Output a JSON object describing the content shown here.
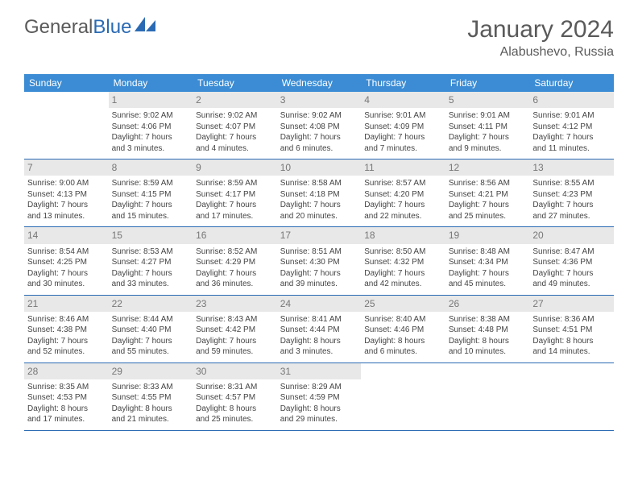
{
  "logo": {
    "text_a": "General",
    "text_b": "Blue"
  },
  "title": "January 2024",
  "location": "Alabushevo, Russia",
  "colors": {
    "header_bg": "#3b8cd4",
    "border": "#2a6ab3",
    "daynum_bg": "#e8e8e8",
    "text": "#444444",
    "muted": "#777777",
    "page_bg": "#ffffff"
  },
  "fonts": {
    "title_pt": 30,
    "location_pt": 16,
    "th_pt": 12,
    "cell_pt": 10
  },
  "days_of_week": [
    "Sunday",
    "Monday",
    "Tuesday",
    "Wednesday",
    "Thursday",
    "Friday",
    "Saturday"
  ],
  "weeks": [
    [
      null,
      {
        "n": "1",
        "sr": "Sunrise: 9:02 AM",
        "ss": "Sunset: 4:06 PM",
        "d1": "Daylight: 7 hours",
        "d2": "and 3 minutes."
      },
      {
        "n": "2",
        "sr": "Sunrise: 9:02 AM",
        "ss": "Sunset: 4:07 PM",
        "d1": "Daylight: 7 hours",
        "d2": "and 4 minutes."
      },
      {
        "n": "3",
        "sr": "Sunrise: 9:02 AM",
        "ss": "Sunset: 4:08 PM",
        "d1": "Daylight: 7 hours",
        "d2": "and 6 minutes."
      },
      {
        "n": "4",
        "sr": "Sunrise: 9:01 AM",
        "ss": "Sunset: 4:09 PM",
        "d1": "Daylight: 7 hours",
        "d2": "and 7 minutes."
      },
      {
        "n": "5",
        "sr": "Sunrise: 9:01 AM",
        "ss": "Sunset: 4:11 PM",
        "d1": "Daylight: 7 hours",
        "d2": "and 9 minutes."
      },
      {
        "n": "6",
        "sr": "Sunrise: 9:01 AM",
        "ss": "Sunset: 4:12 PM",
        "d1": "Daylight: 7 hours",
        "d2": "and 11 minutes."
      }
    ],
    [
      {
        "n": "7",
        "sr": "Sunrise: 9:00 AM",
        "ss": "Sunset: 4:13 PM",
        "d1": "Daylight: 7 hours",
        "d2": "and 13 minutes."
      },
      {
        "n": "8",
        "sr": "Sunrise: 8:59 AM",
        "ss": "Sunset: 4:15 PM",
        "d1": "Daylight: 7 hours",
        "d2": "and 15 minutes."
      },
      {
        "n": "9",
        "sr": "Sunrise: 8:59 AM",
        "ss": "Sunset: 4:17 PM",
        "d1": "Daylight: 7 hours",
        "d2": "and 17 minutes."
      },
      {
        "n": "10",
        "sr": "Sunrise: 8:58 AM",
        "ss": "Sunset: 4:18 PM",
        "d1": "Daylight: 7 hours",
        "d2": "and 20 minutes."
      },
      {
        "n": "11",
        "sr": "Sunrise: 8:57 AM",
        "ss": "Sunset: 4:20 PM",
        "d1": "Daylight: 7 hours",
        "d2": "and 22 minutes."
      },
      {
        "n": "12",
        "sr": "Sunrise: 8:56 AM",
        "ss": "Sunset: 4:21 PM",
        "d1": "Daylight: 7 hours",
        "d2": "and 25 minutes."
      },
      {
        "n": "13",
        "sr": "Sunrise: 8:55 AM",
        "ss": "Sunset: 4:23 PM",
        "d1": "Daylight: 7 hours",
        "d2": "and 27 minutes."
      }
    ],
    [
      {
        "n": "14",
        "sr": "Sunrise: 8:54 AM",
        "ss": "Sunset: 4:25 PM",
        "d1": "Daylight: 7 hours",
        "d2": "and 30 minutes."
      },
      {
        "n": "15",
        "sr": "Sunrise: 8:53 AM",
        "ss": "Sunset: 4:27 PM",
        "d1": "Daylight: 7 hours",
        "d2": "and 33 minutes."
      },
      {
        "n": "16",
        "sr": "Sunrise: 8:52 AM",
        "ss": "Sunset: 4:29 PM",
        "d1": "Daylight: 7 hours",
        "d2": "and 36 minutes."
      },
      {
        "n": "17",
        "sr": "Sunrise: 8:51 AM",
        "ss": "Sunset: 4:30 PM",
        "d1": "Daylight: 7 hours",
        "d2": "and 39 minutes."
      },
      {
        "n": "18",
        "sr": "Sunrise: 8:50 AM",
        "ss": "Sunset: 4:32 PM",
        "d1": "Daylight: 7 hours",
        "d2": "and 42 minutes."
      },
      {
        "n": "19",
        "sr": "Sunrise: 8:48 AM",
        "ss": "Sunset: 4:34 PM",
        "d1": "Daylight: 7 hours",
        "d2": "and 45 minutes."
      },
      {
        "n": "20",
        "sr": "Sunrise: 8:47 AM",
        "ss": "Sunset: 4:36 PM",
        "d1": "Daylight: 7 hours",
        "d2": "and 49 minutes."
      }
    ],
    [
      {
        "n": "21",
        "sr": "Sunrise: 8:46 AM",
        "ss": "Sunset: 4:38 PM",
        "d1": "Daylight: 7 hours",
        "d2": "and 52 minutes."
      },
      {
        "n": "22",
        "sr": "Sunrise: 8:44 AM",
        "ss": "Sunset: 4:40 PM",
        "d1": "Daylight: 7 hours",
        "d2": "and 55 minutes."
      },
      {
        "n": "23",
        "sr": "Sunrise: 8:43 AM",
        "ss": "Sunset: 4:42 PM",
        "d1": "Daylight: 7 hours",
        "d2": "and 59 minutes."
      },
      {
        "n": "24",
        "sr": "Sunrise: 8:41 AM",
        "ss": "Sunset: 4:44 PM",
        "d1": "Daylight: 8 hours",
        "d2": "and 3 minutes."
      },
      {
        "n": "25",
        "sr": "Sunrise: 8:40 AM",
        "ss": "Sunset: 4:46 PM",
        "d1": "Daylight: 8 hours",
        "d2": "and 6 minutes."
      },
      {
        "n": "26",
        "sr": "Sunrise: 8:38 AM",
        "ss": "Sunset: 4:48 PM",
        "d1": "Daylight: 8 hours",
        "d2": "and 10 minutes."
      },
      {
        "n": "27",
        "sr": "Sunrise: 8:36 AM",
        "ss": "Sunset: 4:51 PM",
        "d1": "Daylight: 8 hours",
        "d2": "and 14 minutes."
      }
    ],
    [
      {
        "n": "28",
        "sr": "Sunrise: 8:35 AM",
        "ss": "Sunset: 4:53 PM",
        "d1": "Daylight: 8 hours",
        "d2": "and 17 minutes."
      },
      {
        "n": "29",
        "sr": "Sunrise: 8:33 AM",
        "ss": "Sunset: 4:55 PM",
        "d1": "Daylight: 8 hours",
        "d2": "and 21 minutes."
      },
      {
        "n": "30",
        "sr": "Sunrise: 8:31 AM",
        "ss": "Sunset: 4:57 PM",
        "d1": "Daylight: 8 hours",
        "d2": "and 25 minutes."
      },
      {
        "n": "31",
        "sr": "Sunrise: 8:29 AM",
        "ss": "Sunset: 4:59 PM",
        "d1": "Daylight: 8 hours",
        "d2": "and 29 minutes."
      },
      null,
      null,
      null
    ]
  ]
}
